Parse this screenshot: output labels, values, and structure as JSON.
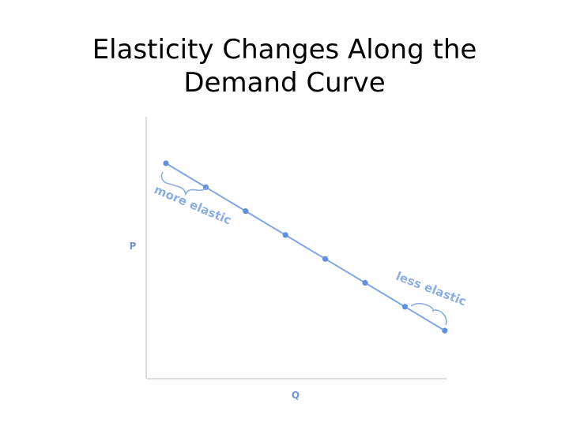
{
  "slide": {
    "title": "Elasticity Changes Along the Demand Curve"
  },
  "colors": {
    "axis": "#cfd4dc",
    "curve": "#7fa6e6",
    "points": "#5f8fdf",
    "axis_label": "#6f95d6",
    "annotation": "#8aaee5"
  },
  "chart_data": {
    "type": "line",
    "title": "Elasticity Changes Along the Demand Curve",
    "xlabel": "Q",
    "ylabel": "P",
    "x_ticks": [],
    "y_ticks": [],
    "grid": false,
    "series": [
      {
        "points": [
          {
            "x": 1,
            "y": 8
          },
          {
            "x": 2,
            "y": 7
          },
          {
            "x": 3,
            "y": 6
          },
          {
            "x": 4,
            "y": 5
          },
          {
            "x": 5,
            "y": 4
          },
          {
            "x": 6,
            "y": 3
          },
          {
            "x": 7,
            "y": 2
          },
          {
            "x": 8,
            "y": 1
          }
        ]
      }
    ],
    "annotations": [
      {
        "text": "more elastic",
        "segment": [
          0,
          1
        ]
      },
      {
        "text": "less elastic",
        "segment": [
          6,
          7
        ]
      }
    ]
  }
}
